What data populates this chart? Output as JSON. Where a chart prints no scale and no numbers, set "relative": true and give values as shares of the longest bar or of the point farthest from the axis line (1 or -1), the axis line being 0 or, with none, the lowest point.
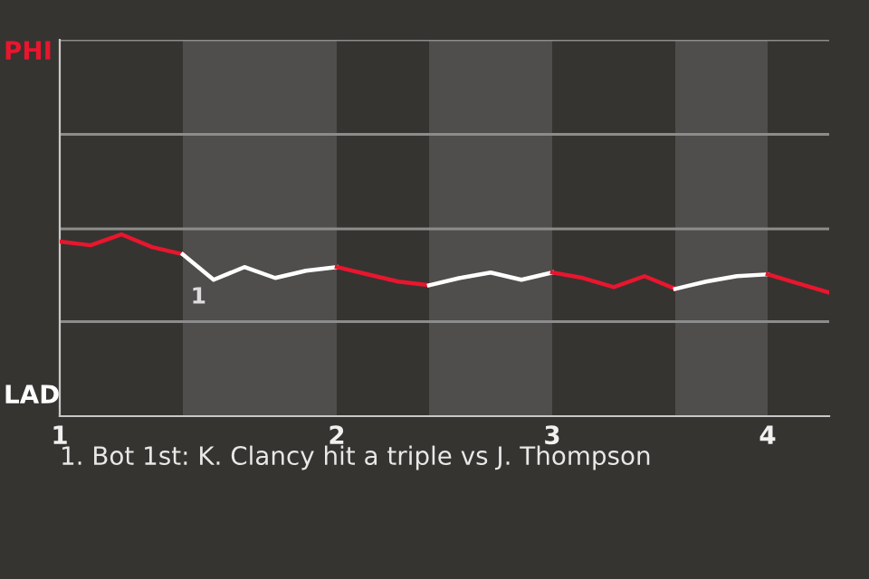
{
  "chart_data": {
    "type": "line",
    "relative": true,
    "categories": [
      "1",
      null,
      null,
      null,
      null,
      null,
      null,
      null,
      null,
      "2",
      null,
      null,
      null,
      null,
      null,
      null,
      "3",
      null,
      null,
      null,
      null,
      null,
      null,
      "4",
      null,
      null
    ],
    "tick_labels": "x",
    "ref_lines": [
      {
        "axis": "y",
        "value": 0.52,
        "color": "#8c8c8c"
      },
      {
        "axis": "y",
        "value": 1.03,
        "color": "#8c8c8c"
      },
      {
        "axis": "y",
        "value": 1.55,
        "color": "#8c8c8c"
      },
      {
        "axis": "y",
        "value": 2.07,
        "color": "#8c8c8c"
      }
    ],
    "marker": "none",
    "line_style": "solid",
    "series": [
      {
        "color": "#e8162e",
        "values": [
          0.96,
          0.94,
          1,
          0.93,
          0.89,
          null,
          null,
          null,
          null,
          null,
          null,
          null,
          null,
          null,
          null,
          null,
          null,
          null,
          null,
          null,
          null,
          null,
          null,
          null,
          null,
          null
        ]
      },
      {
        "color": "#ffffff",
        "values": [
          null,
          null,
          null,
          null,
          0.89,
          0.75,
          0.82,
          0.76,
          0.8,
          0.82,
          null,
          null,
          null,
          null,
          null,
          null,
          null,
          null,
          null,
          null,
          null,
          null,
          null,
          null,
          null,
          null
        ]
      },
      {
        "color": "#e8162e",
        "values": [
          null,
          null,
          null,
          null,
          null,
          null,
          null,
          null,
          null,
          0.82,
          0.78,
          0.74,
          0.72,
          null,
          null,
          null,
          null,
          null,
          null,
          null,
          null,
          null,
          null,
          null,
          null,
          null
        ]
      },
      {
        "color": "#ffffff",
        "values": [
          null,
          null,
          null,
          null,
          null,
          null,
          null,
          null,
          null,
          null,
          null,
          null,
          0.72,
          0.76,
          0.79,
          0.75,
          0.79,
          null,
          null,
          null,
          null,
          null,
          null,
          null,
          null,
          null
        ]
      },
      {
        "color": "#e8162e",
        "values": [
          null,
          null,
          null,
          null,
          null,
          null,
          null,
          null,
          null,
          null,
          null,
          null,
          null,
          null,
          null,
          null,
          0.79,
          0.76,
          0.71,
          0.77,
          0.7,
          null,
          null,
          null,
          null,
          null
        ]
      },
      {
        "color": "#ffffff",
        "values": [
          null,
          null,
          null,
          null,
          null,
          null,
          null,
          null,
          null,
          null,
          null,
          null,
          null,
          null,
          null,
          null,
          null,
          null,
          null,
          null,
          0.7,
          0.74,
          0.77,
          0.78,
          null,
          null
        ]
      },
      {
        "color": "#e8162e",
        "values": [
          null,
          null,
          null,
          null,
          null,
          null,
          null,
          null,
          null,
          null,
          null,
          null,
          null,
          null,
          null,
          null,
          null,
          null,
          null,
          null,
          null,
          null,
          null,
          0.78,
          0.73,
          0.68
        ]
      }
    ],
    "annotations": [
      "PHI",
      "LAD",
      "1",
      "1. Bot 1st: K. Clancy hit a triple vs J. Thompson"
    ]
  }
}
